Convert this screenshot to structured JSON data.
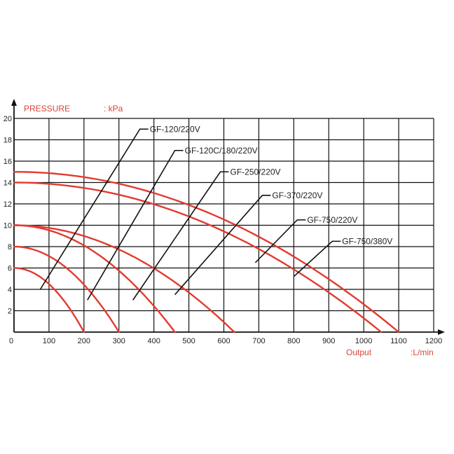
{
  "chart_data": {
    "type": "line",
    "ylabel": "PRESSURE",
    "ylabel_unit": ": kPa",
    "xlabel": "Output",
    "xlabel_unit": ":L/min",
    "xlim": [
      0,
      1200
    ],
    "ylim": [
      0,
      20
    ],
    "x_ticks": [
      "0",
      "100",
      "200",
      "300",
      "400",
      "500",
      "600",
      "700",
      "800",
      "900",
      "1000",
      "1100",
      "1200"
    ],
    "y_ticks": [
      "0",
      "2",
      "4",
      "6",
      "8",
      "10",
      "12",
      "14",
      "16",
      "18",
      "20"
    ],
    "grid": true,
    "curve_color": "#e23b30",
    "series": [
      {
        "name": "GF-120/220V",
        "shutoff": 6,
        "max_flow": 200,
        "label_point": [
          75,
          4
        ],
        "label_anchor": [
          360,
          19
        ]
      },
      {
        "name": "GF-120C/180/220V",
        "shutoff": 8,
        "max_flow": 300,
        "label_point": [
          210,
          3
        ],
        "label_anchor": [
          460,
          17
        ]
      },
      {
        "name": "GF-250/220V",
        "shutoff": 10,
        "max_flow": 460,
        "label_point": [
          340,
          3
        ],
        "label_anchor": [
          590,
          15
        ]
      },
      {
        "name": "GF-370/220V",
        "shutoff": 10,
        "max_flow": 630,
        "label_point": [
          460,
          3.5
        ],
        "label_anchor": [
          710,
          12.8
        ]
      },
      {
        "name": "GF-750/220V",
        "shutoff": 14,
        "max_flow": 1050,
        "label_point": [
          690,
          6.5
        ],
        "label_anchor": [
          810,
          10.5
        ]
      },
      {
        "name": "GF-750/380V",
        "shutoff": 15,
        "max_flow": 1100,
        "label_point": [
          800,
          5.2
        ],
        "label_anchor": [
          910,
          8.5
        ]
      }
    ]
  }
}
